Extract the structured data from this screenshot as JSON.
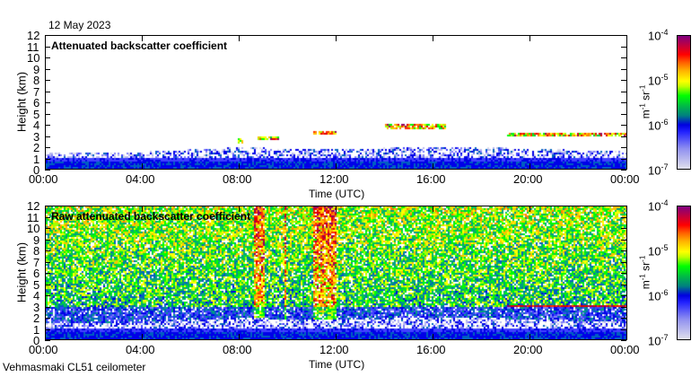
{
  "date": "12 May 2023",
  "footer": "Vehmasmaki CL51 ceilometer",
  "chart_data": [
    {
      "type": "heatmap",
      "title": "Attenuated backscatter coefficient",
      "xlabel": "Time (UTC)",
      "ylabel": "Height (km)",
      "xlim": [
        "00:00",
        "24:00"
      ],
      "ylim": [
        0,
        12
      ],
      "xticks": [
        "00:00",
        "04:00",
        "08:00",
        "12:00",
        "16:00",
        "20:00",
        "00:00"
      ],
      "yticks": [
        "0",
        "1",
        "2",
        "3",
        "4",
        "5",
        "6",
        "7",
        "8",
        "9",
        "10",
        "11",
        "12"
      ],
      "colorbar": {
        "label": "m-1 sr-1",
        "scale": "log",
        "range": [
          1e-07,
          0.0001
        ],
        "ticks": [
          "10-7",
          "10-6",
          "10-5",
          "10-4"
        ]
      },
      "features": {
        "boundary_layer_top_km": [
          [
            0,
            1.5
          ],
          [
            4,
            1.6
          ],
          [
            8,
            2.0
          ],
          [
            12,
            1.8
          ],
          [
            16,
            2.1
          ],
          [
            20,
            1.9
          ],
          [
            24,
            1.6
          ]
        ],
        "cloud_layers": [
          {
            "start_h": 7.9,
            "end_h": 8.1,
            "height_km": 2.6
          },
          {
            "start_h": 8.7,
            "end_h": 9.6,
            "height_km": 2.8
          },
          {
            "start_h": 11.0,
            "end_h": 12.0,
            "height_km": 3.3
          },
          {
            "start_h": 14.0,
            "end_h": 16.5,
            "height_km": 3.9
          },
          {
            "start_h": 19.0,
            "end_h": 24.0,
            "height_km": 3.1
          }
        ]
      }
    },
    {
      "type": "heatmap",
      "title": "Raw attenuated backscatter coefficient",
      "xlabel": "Time (UTC)",
      "ylabel": "Height (km)",
      "xlim": [
        "00:00",
        "24:00"
      ],
      "ylim": [
        0,
        12
      ],
      "xticks": [
        "00:00",
        "04:00",
        "08:00",
        "12:00",
        "16:00",
        "20:00",
        "00:00"
      ],
      "yticks": [
        "0",
        "1",
        "2",
        "3",
        "4",
        "5",
        "6",
        "7",
        "8",
        "9",
        "10",
        "11",
        "12"
      ],
      "colorbar": {
        "label": "m-1 sr-1",
        "scale": "log",
        "range": [
          1e-07,
          0.0001
        ],
        "ticks": [
          "10-7",
          "10-6",
          "10-5",
          "10-4"
        ]
      },
      "features": {
        "high_noise_columns_h": [
          [
            8.6,
            9.0
          ],
          [
            9.8,
            9.9
          ],
          [
            11.0,
            12.0
          ]
        ],
        "cloud_layer": {
          "start_h": 19.0,
          "end_h": 24.0,
          "height_km": 3.1
        }
      }
    }
  ],
  "colors": {
    "low": "#e0e0ec",
    "blue": "#0000e0",
    "green": "#00ff00",
    "yellow": "#ffff00",
    "red": "#ff0000",
    "high": "#800080"
  }
}
